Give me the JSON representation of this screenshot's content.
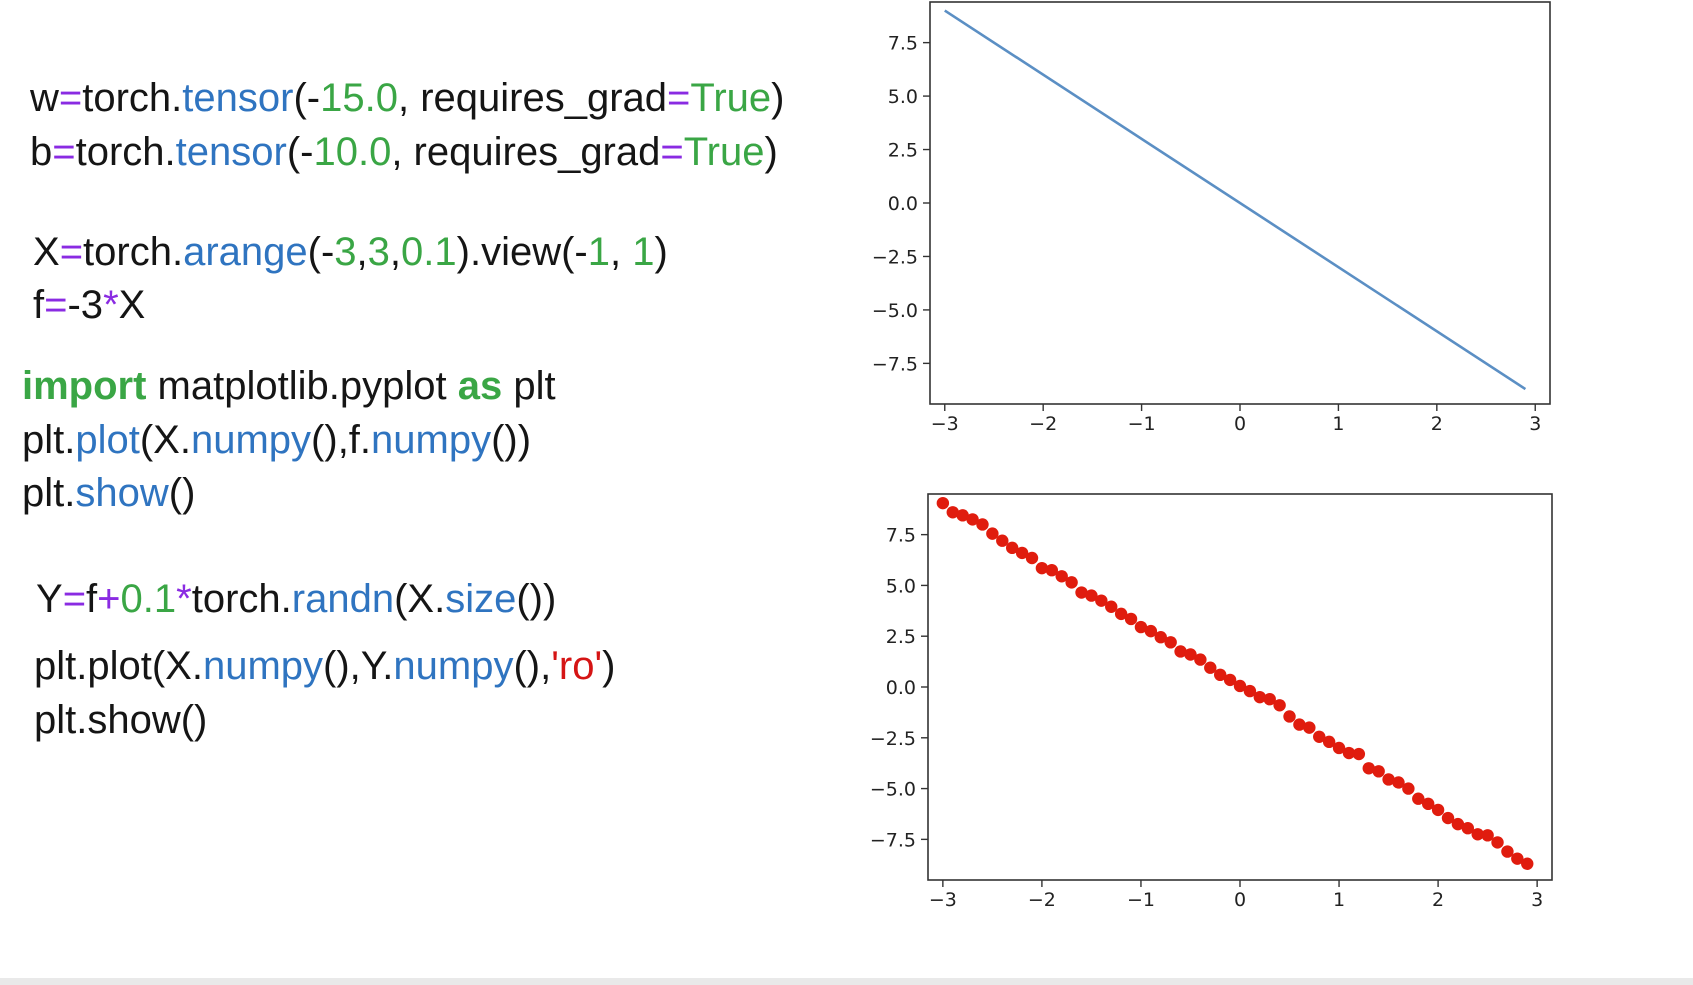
{
  "palette": {
    "default": "#151515",
    "method": "#2f74c0",
    "number": "#3aa645",
    "keyword": "#3aa645",
    "operator": "#8a2be2",
    "string": "#d51414",
    "line_series": "#5b8fc4",
    "dot_series": "#e01c0e"
  },
  "code": [
    {
      "id": "code-line-w",
      "tokens": [
        {
          "t": "w",
          "k": "default"
        },
        {
          "t": "=",
          "k": "operator"
        },
        {
          "t": "torch.",
          "k": "default"
        },
        {
          "t": "tensor",
          "k": "method"
        },
        {
          "t": "(-",
          "k": "default"
        },
        {
          "t": "15.0",
          "k": "number"
        },
        {
          "t": ", requires_grad",
          "k": "default"
        },
        {
          "t": "=",
          "k": "operator"
        },
        {
          "t": "True",
          "k": "keyword"
        },
        {
          "t": ")",
          "k": "default"
        }
      ]
    },
    {
      "id": "code-line-b",
      "tokens": [
        {
          "t": "b",
          "k": "default"
        },
        {
          "t": "=",
          "k": "operator"
        },
        {
          "t": "torch.",
          "k": "default"
        },
        {
          "t": "tensor",
          "k": "method"
        },
        {
          "t": "(-",
          "k": "default"
        },
        {
          "t": "10.0",
          "k": "number"
        },
        {
          "t": ", requires_grad",
          "k": "default"
        },
        {
          "t": "=",
          "k": "operator"
        },
        {
          "t": "True",
          "k": "keyword"
        },
        {
          "t": ")",
          "k": "default"
        }
      ]
    },
    {
      "id": "code-line-x",
      "tokens": [
        {
          "t": "X",
          "k": "default"
        },
        {
          "t": "=",
          "k": "operator"
        },
        {
          "t": "torch.",
          "k": "default"
        },
        {
          "t": "arange",
          "k": "method"
        },
        {
          "t": "(-",
          "k": "default"
        },
        {
          "t": "3",
          "k": "number"
        },
        {
          "t": ",",
          "k": "default"
        },
        {
          "t": "3",
          "k": "number"
        },
        {
          "t": ",",
          "k": "default"
        },
        {
          "t": "0.1",
          "k": "number"
        },
        {
          "t": ").view(-",
          "k": "default"
        },
        {
          "t": "1",
          "k": "number"
        },
        {
          "t": ", ",
          "k": "default"
        },
        {
          "t": "1",
          "k": "number"
        },
        {
          "t": ")",
          "k": "default"
        }
      ]
    },
    {
      "id": "code-line-f",
      "tokens": [
        {
          "t": "f",
          "k": "default"
        },
        {
          "t": "=",
          "k": "operator"
        },
        {
          "t": "-3",
          "k": "default"
        },
        {
          "t": "*",
          "k": "operator"
        },
        {
          "t": "X",
          "k": "default"
        }
      ]
    },
    {
      "id": "code-line-import",
      "tokens": [
        {
          "t": "import",
          "k": "keyword",
          "bold": true
        },
        {
          "t": " matplotlib.pyplot ",
          "k": "default"
        },
        {
          "t": "as",
          "k": "keyword",
          "bold": true
        },
        {
          "t": " plt",
          "k": "default"
        }
      ]
    },
    {
      "id": "code-line-plot-f",
      "tokens": [
        {
          "t": "plt.",
          "k": "default"
        },
        {
          "t": "plot",
          "k": "method"
        },
        {
          "t": "(X.",
          "k": "default"
        },
        {
          "t": "numpy",
          "k": "method"
        },
        {
          "t": "(),f.",
          "k": "default"
        },
        {
          "t": "numpy",
          "k": "method"
        },
        {
          "t": "())",
          "k": "default"
        }
      ]
    },
    {
      "id": "code-line-show-1",
      "tokens": [
        {
          "t": "plt.",
          "k": "default"
        },
        {
          "t": "show",
          "k": "method"
        },
        {
          "t": "()",
          "k": "default"
        }
      ]
    },
    {
      "id": "code-line-y",
      "tokens": [
        {
          "t": "Y",
          "k": "default"
        },
        {
          "t": "=",
          "k": "operator"
        },
        {
          "t": "f",
          "k": "default"
        },
        {
          "t": "+",
          "k": "operator"
        },
        {
          "t": "0.1",
          "k": "number"
        },
        {
          "t": "*",
          "k": "operator"
        },
        {
          "t": "torch.",
          "k": "default"
        },
        {
          "t": "randn",
          "k": "method"
        },
        {
          "t": "(X.",
          "k": "default"
        },
        {
          "t": "size",
          "k": "method"
        },
        {
          "t": "())",
          "k": "default"
        }
      ]
    },
    {
      "id": "code-line-plot-y",
      "tokens": [
        {
          "t": "plt.plot(X.",
          "k": "default"
        },
        {
          "t": "numpy",
          "k": "method"
        },
        {
          "t": "(),Y.",
          "k": "default"
        },
        {
          "t": "numpy",
          "k": "method"
        },
        {
          "t": "(),",
          "k": "default"
        },
        {
          "t": "'ro'",
          "k": "string"
        },
        {
          "t": ")",
          "k": "default"
        }
      ]
    },
    {
      "id": "code-line-show-2",
      "tokens": [
        {
          "t": "plt.show()",
          "k": "default"
        }
      ]
    }
  ],
  "chart_data": [
    {
      "type": "line",
      "xlim": [
        -3.15,
        3.15
      ],
      "ylim": [
        -9.4,
        9.4
      ],
      "x_ticks": [
        -3,
        -2,
        -1,
        0,
        1,
        2,
        3
      ],
      "x_tick_labels": [
        "−3",
        "−2",
        "−1",
        "0",
        "1",
        "2",
        "3"
      ],
      "y_ticks": [
        7.5,
        5.0,
        2.5,
        0.0,
        -2.5,
        -5.0,
        -7.5
      ],
      "y_tick_labels": [
        "7.5",
        "5.0",
        "2.5",
        "0.0",
        "−2.5",
        "−5.0",
        "−7.5"
      ],
      "grid": false,
      "series": [
        {
          "x": [
            -3.0,
            2.9
          ],
          "y": [
            9.0,
            -8.7
          ]
        }
      ]
    },
    {
      "type": "scatter",
      "xlim": [
        -3.15,
        3.15
      ],
      "ylim": [
        -9.5,
        9.5
      ],
      "x_ticks": [
        -3,
        -2,
        -1,
        0,
        1,
        2,
        3
      ],
      "x_tick_labels": [
        "−3",
        "−2",
        "−1",
        "0",
        "1",
        "2",
        "3"
      ],
      "y_ticks": [
        7.5,
        5.0,
        2.5,
        0.0,
        -2.5,
        -5.0,
        -7.5
      ],
      "y_tick_labels": [
        "7.5",
        "5.0",
        "2.5",
        "0.0",
        "−2.5",
        "−5.0",
        "−7.5"
      ],
      "grid": false,
      "series": [
        {
          "marker": "ro",
          "x": [
            -3.0,
            -2.9,
            -2.8,
            -2.7,
            -2.6,
            -2.5,
            -2.4,
            -2.3,
            -2.2,
            -2.1,
            -2.0,
            -1.9,
            -1.8,
            -1.7,
            -1.6,
            -1.5,
            -1.4,
            -1.3,
            -1.2,
            -1.1,
            -1.0,
            -0.9,
            -0.8,
            -0.7,
            -0.6,
            -0.5,
            -0.4,
            -0.3,
            -0.2,
            -0.1,
            0.0,
            0.1,
            0.2,
            0.3,
            0.4,
            0.5,
            0.6,
            0.7,
            0.8,
            0.9,
            1.0,
            1.1,
            1.2,
            1.3,
            1.4,
            1.5,
            1.6,
            1.7,
            1.8,
            1.9,
            2.0,
            2.1,
            2.2,
            2.3,
            2.4,
            2.5,
            2.6,
            2.7,
            2.8,
            2.9
          ],
          "y": [
            9.05,
            8.6,
            8.45,
            8.25,
            8.0,
            7.55,
            7.2,
            6.85,
            6.6,
            6.35,
            5.85,
            5.75,
            5.45,
            5.15,
            4.65,
            4.5,
            4.25,
            3.95,
            3.6,
            3.35,
            2.95,
            2.75,
            2.45,
            2.2,
            1.75,
            1.6,
            1.35,
            0.95,
            0.6,
            0.35,
            0.05,
            -0.2,
            -0.5,
            -0.6,
            -0.9,
            -1.45,
            -1.85,
            -2.0,
            -2.45,
            -2.7,
            -3.0,
            -3.25,
            -3.3,
            -4.0,
            -4.15,
            -4.55,
            -4.7,
            -5.0,
            -5.5,
            -5.75,
            -6.05,
            -6.45,
            -6.75,
            -6.95,
            -7.25,
            -7.3,
            -7.65,
            -8.1,
            -8.45,
            -8.7
          ]
        }
      ]
    }
  ]
}
